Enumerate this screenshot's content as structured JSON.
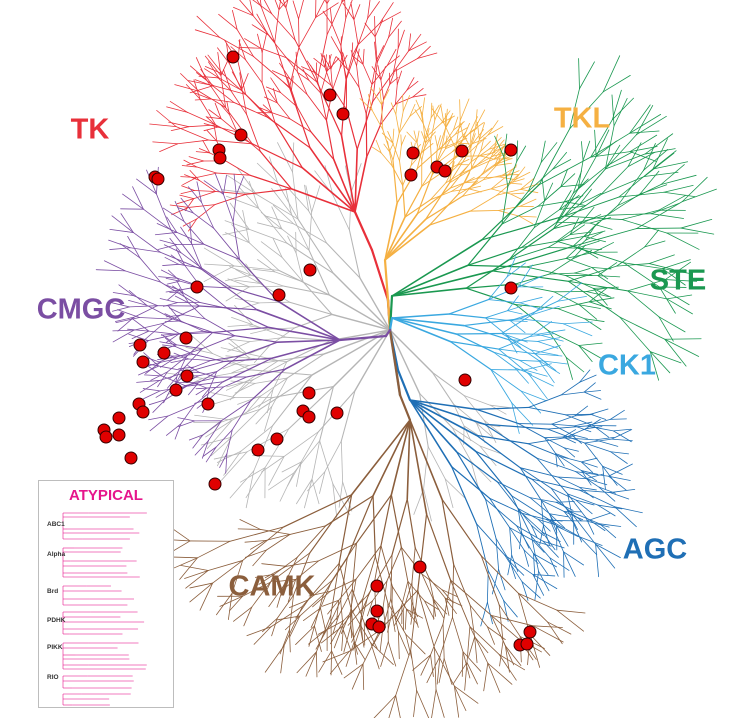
{
  "groups": [
    {
      "id": "TK",
      "label": "TK",
      "color": "#e8303a"
    },
    {
      "id": "TKL",
      "label": "TKL",
      "color": "#f5b042"
    },
    {
      "id": "STE",
      "label": "STE",
      "color": "#1a9850"
    },
    {
      "id": "CK1",
      "label": "CK1",
      "color": "#3aa8e0"
    },
    {
      "id": "AGC",
      "label": "AGC",
      "color": "#1f6fb5"
    },
    {
      "id": "CAMK",
      "label": "CAMK",
      "color": "#8b5e3c"
    },
    {
      "id": "CMGC",
      "label": "CMGC",
      "color": "#7b4ea3"
    }
  ],
  "other_color": "#b5b5b5",
  "marker_color": "#e00000",
  "atypical": {
    "title": "ATYPICAL",
    "color": "#e6158c",
    "families": [
      "ABC1",
      "Alpha",
      "Brd",
      "PDHK",
      "PIKK",
      "RIO"
    ]
  }
}
